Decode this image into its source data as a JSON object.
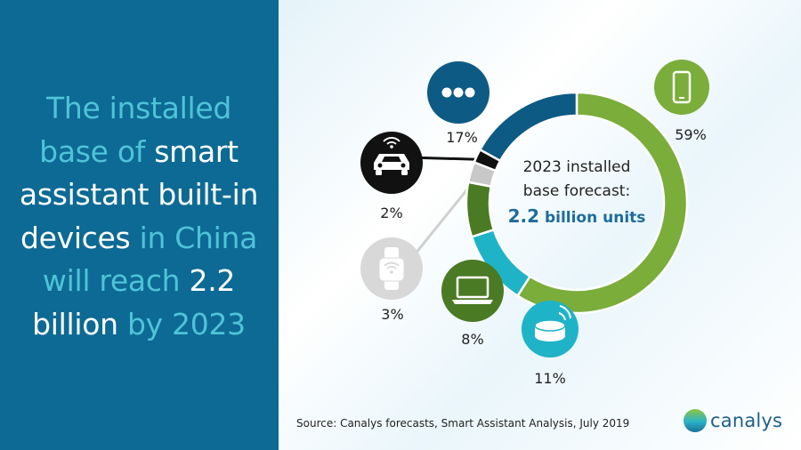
{
  "headline": {
    "lines": [
      [
        {
          "text": "The installed",
          "tone": "cyan"
        }
      ],
      [
        {
          "text": "base of ",
          "tone": "cyan"
        },
        {
          "text": "smart",
          "tone": "white"
        }
      ],
      [
        {
          "text": "assistant built-in",
          "tone": "white"
        }
      ],
      [
        {
          "text": "devices ",
          "tone": "white"
        },
        {
          "text": "in China",
          "tone": "cyan"
        }
      ],
      [
        {
          "text": "will reach ",
          "tone": "cyan"
        },
        {
          "text": "2.2",
          "tone": "white"
        }
      ],
      [
        {
          "text": "billion ",
          "tone": "white"
        },
        {
          "text": "by 2023",
          "tone": "cyan"
        }
      ]
    ]
  },
  "chart_data": {
    "type": "pie",
    "subtype": "donut",
    "center_label": {
      "line1": "2023 installed",
      "line2": "base forecast:",
      "value": "2.2",
      "unit": " billion units"
    },
    "slices": [
      {
        "category": "Smartphones",
        "value": 59,
        "label": "59%",
        "color": "#7aad3a",
        "icon": "smartphone-icon"
      },
      {
        "category": "Smart speakers",
        "value": 11,
        "label": "11%",
        "color": "#1fb3c8",
        "icon": "smart-speaker-icon"
      },
      {
        "category": "PCs",
        "value": 8,
        "label": "8%",
        "color": "#4a7a23",
        "icon": "laptop-icon"
      },
      {
        "category": "Wearables",
        "value": 3,
        "label": "3%",
        "color": "#c8c8c8",
        "icon": "smartwatch-icon"
      },
      {
        "category": "Connected cars",
        "value": 2,
        "label": "2%",
        "color": "#111111",
        "icon": "connected-car-icon"
      },
      {
        "category": "Others",
        "value": 17,
        "label": "17%",
        "color": "#0d5a85",
        "icon": "more-dots-icon"
      }
    ]
  },
  "source": "Source: Canalys forecasts, Smart Assistant Analysis, July 2019",
  "logo": {
    "text": "canalys"
  }
}
